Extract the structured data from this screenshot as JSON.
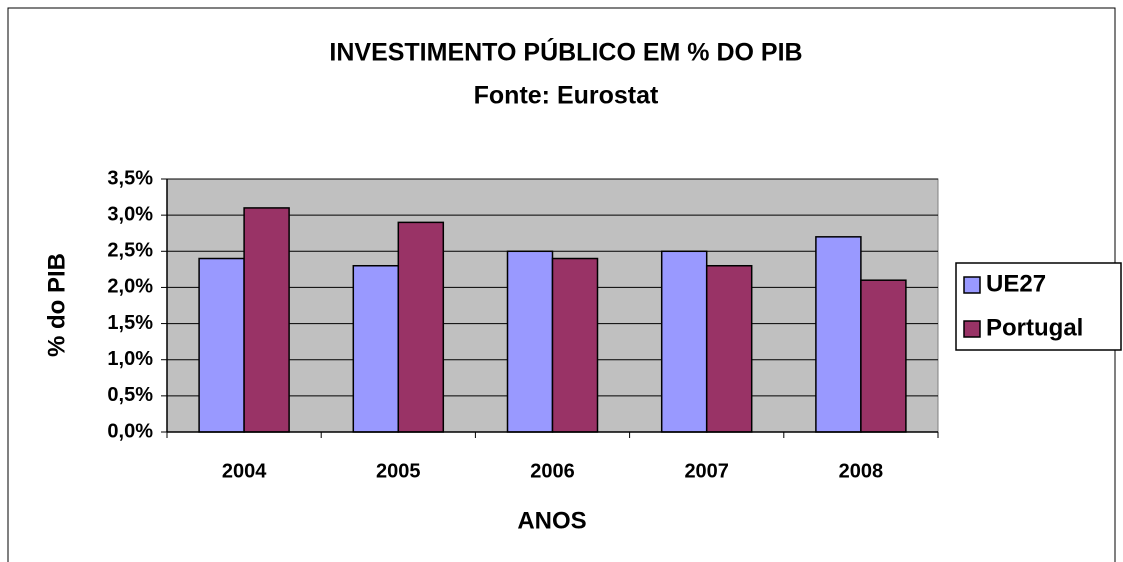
{
  "chart_data": {
    "type": "bar",
    "title": "INVESTIMENTO PÚBLICO EM % DO PIB",
    "subtitle": "Fonte: Eurostat",
    "x_label": "ANOS",
    "y_label": "% do PIB",
    "categories": [
      "2004",
      "2005",
      "2006",
      "2007",
      "2008"
    ],
    "series": [
      {
        "name": "UE27",
        "color": "#9999ff",
        "values": [
          2.4,
          2.3,
          2.5,
          2.5,
          2.7
        ]
      },
      {
        "name": "Portugal",
        "color": "#993366",
        "values": [
          3.1,
          2.9,
          2.4,
          2.3,
          2.1
        ]
      }
    ],
    "ylim": [
      0,
      3.5
    ],
    "yticks": [
      {
        "value": 0,
        "label": "0,0%"
      },
      {
        "value": 0.5,
        "label": "0,5%"
      },
      {
        "value": 1,
        "label": "1,0%"
      },
      {
        "value": 1.5,
        "label": "1,5%"
      },
      {
        "value": 2,
        "label": "2,0%"
      },
      {
        "value": 2.5,
        "label": "2,5%"
      },
      {
        "value": 3,
        "label": "3,0%"
      },
      {
        "value": 3.5,
        "label": "3,5%"
      }
    ],
    "grid": true,
    "legend": "right"
  }
}
